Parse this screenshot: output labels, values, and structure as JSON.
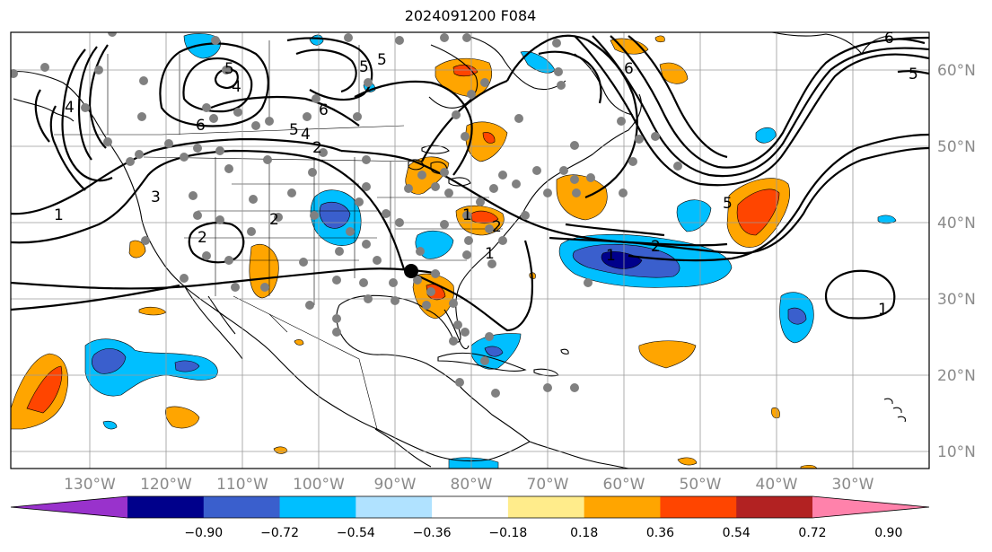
{
  "title": "2024091200 F084",
  "map": {
    "lon_labels": [
      "130°W",
      "120°W",
      "110°W",
      "100°W",
      "90°W",
      "80°W",
      "70°W",
      "60°W",
      "50°W",
      "40°W",
      "30°W"
    ],
    "lat_labels": [
      "60°N",
      "50°N",
      "40°N",
      "30°N",
      "20°N",
      "10°N"
    ],
    "contour_labels": [
      "1",
      "2",
      "3",
      "4",
      "5",
      "6",
      "5",
      "4",
      "2",
      "6",
      "5",
      "4",
      "2",
      "1",
      "2",
      "5",
      "6",
      "5",
      "1",
      "2",
      "1",
      "5",
      "6",
      "1"
    ]
  },
  "colorbar": {
    "colors": [
      "#9932cc",
      "#00008b",
      "#3a5fcd",
      "#00bfff",
      "#b0e2ff",
      "#ffffff",
      "#ffec8b",
      "#ffa500",
      "#ff4500",
      "#b22222",
      "#ff82ab"
    ],
    "tick_labels": [
      "−0.90",
      "−0.72",
      "−0.54",
      "−0.36",
      "−0.18",
      "0.18",
      "0.36",
      "0.54",
      "0.72",
      "0.90"
    ]
  }
}
